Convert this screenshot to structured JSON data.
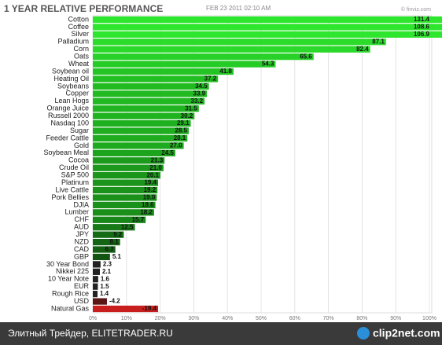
{
  "chart_data": {
    "type": "hbar",
    "title": "1 YEAR RELATIVE PERFORMANCE",
    "subtitle": "FEB 23 2011 02:10 AM",
    "source": "© finviz.com",
    "categories": [
      "Cotton",
      "Coffee",
      "Silver",
      "Palladium",
      "Corn",
      "Oats",
      "Wheat",
      "Soybean oil",
      "Heating Oil",
      "Soybeans",
      "Copper",
      "Lean Hogs",
      "Orange Juice",
      "Russell 2000",
      "Nasdaq 100",
      "Sugar",
      "Feeder Cattle",
      "Gold",
      "Soybean Meal",
      "Cocoa",
      "Crude Oil",
      "S&P 500",
      "Platinum",
      "Live Cattle",
      "Pork Bellies",
      "DJIA",
      "Lumber",
      "CHF",
      "AUD",
      "JPY",
      "NZD",
      "CAD",
      "GBP",
      "30 Year Bond",
      "Nikkei 225",
      "10 Year Note",
      "EUR",
      "Rough Rice",
      "USD",
      "Natural Gas"
    ],
    "values": [
      131.4,
      108.6,
      106.9,
      87.1,
      82.4,
      65.6,
      54.3,
      41.8,
      37.2,
      34.5,
      33.9,
      33.2,
      31.5,
      30.2,
      29.1,
      28.5,
      28.1,
      27.0,
      24.5,
      21.3,
      21.0,
      20.1,
      19.4,
      19.2,
      19.0,
      18.6,
      18.2,
      15.7,
      12.5,
      9.2,
      8.1,
      6.7,
      5.1,
      2.3,
      2.1,
      1.6,
      1.5,
      1.4,
      -4.2,
      -19.4
    ],
    "value_labels": [
      "131.4",
      "108.6",
      "106.9",
      "87.1",
      "82.4",
      "65.6",
      "54.3",
      "41.8",
      "37.2",
      "34.5",
      "33.9",
      "33.2",
      "31.5",
      "30.2",
      "29.1",
      "28.5",
      "28.1",
      "27.0",
      "24.5",
      "21.3",
      "21.0",
      "20.1",
      "19.4",
      "19.2",
      "19.0",
      "18.6",
      "18.2",
      "15.7",
      "12.5",
      "9.2",
      "8.1",
      "6.7",
      "5.1",
      "2.3",
      "2.1",
      "1.6",
      "1.5",
      "1.4",
      "-4.2",
      "-19.4"
    ],
    "colors": [
      "#2ee62e",
      "#2ee62e",
      "#2ee62e",
      "#2bdc2b",
      "#2ad92a",
      "#27d127",
      "#25cc25",
      "#23c423",
      "#22bf22",
      "#21bb21",
      "#21ba21",
      "#21b821",
      "#20b520",
      "#20b320",
      "#1fb01f",
      "#1fae1f",
      "#1fad1f",
      "#1eaa1e",
      "#1da41d",
      "#1c9a1c",
      "#1c991c",
      "#1b961b",
      "#1b941b",
      "#1b931b",
      "#1a921a",
      "#1a911a",
      "#1a8f1a",
      "#198619",
      "#177a17",
      "#156c15",
      "#146614",
      "#135e13",
      "#125512",
      "#222222",
      "#222222",
      "#222222",
      "#222222",
      "#222222",
      "#5a1515",
      "#c81e1e"
    ],
    "xlim": [
      0,
      100
    ],
    "xticks": [
      {
        "value": 0,
        "label": "0%"
      },
      {
        "value": 10,
        "label": "10%"
      },
      {
        "value": 20,
        "label": "20%"
      },
      {
        "value": 30,
        "label": "30%"
      },
      {
        "value": 40,
        "label": "40%"
      },
      {
        "value": 50,
        "label": "50%"
      },
      {
        "value": 60,
        "label": "60%"
      },
      {
        "value": 70,
        "label": "70%"
      },
      {
        "value": 80,
        "label": "80%"
      },
      {
        "value": 90,
        "label": "90%"
      },
      {
        "value": 100,
        "label": "100%"
      }
    ],
    "grid": true
  },
  "footer": {
    "text": "Элитный Трейдер, ELITETRADER.RU",
    "logo": "clip2net.com"
  }
}
